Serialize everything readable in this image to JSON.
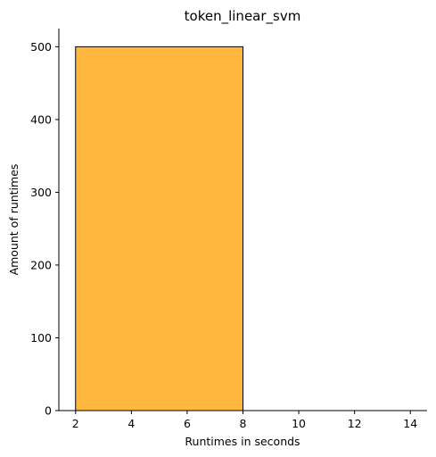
{
  "chart_data": {
    "type": "bar",
    "title": "token_linear_svm",
    "xlabel": "Runtimes in seconds",
    "ylabel": "Amount of runtimes",
    "xlim": [
      1.4,
      14.6
    ],
    "ylim": [
      0,
      525
    ],
    "xticks": [
      2,
      4,
      6,
      8,
      10,
      12,
      14
    ],
    "yticks": [
      0,
      100,
      200,
      300,
      400,
      500
    ],
    "bins": [
      {
        "x_start": 2,
        "x_end": 8,
        "value": 500
      }
    ],
    "bar_color": "#ffb83d",
    "edge_color": "#000000",
    "grid": false,
    "legend": "none"
  }
}
